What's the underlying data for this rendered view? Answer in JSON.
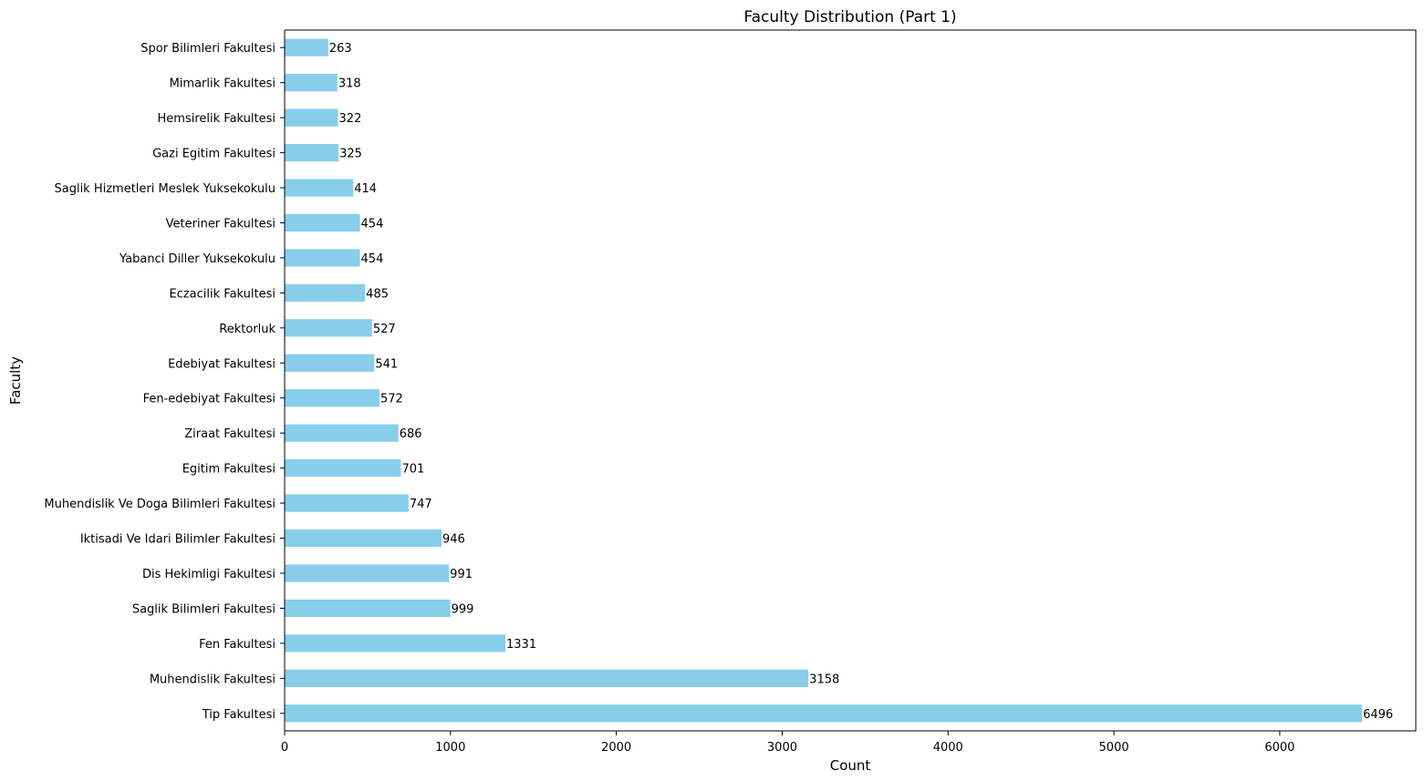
{
  "chart_data": {
    "type": "bar",
    "orientation": "horizontal",
    "title": "Faculty Distribution (Part 1)",
    "xlabel": "Count",
    "ylabel": "Faculty",
    "xlim": [
      0,
      6820
    ],
    "xticks": [
      0,
      1000,
      2000,
      3000,
      4000,
      5000,
      6000
    ],
    "grid": false,
    "bar_color": "#87ceeb",
    "categories": [
      "Tip Fakultesi",
      "Muhendislik Fakultesi",
      "Fen Fakultesi",
      "Saglik Bilimleri Fakultesi",
      "Dis Hekimligi Fakultesi",
      "Iktisadi Ve Idari Bilimler Fakultesi",
      "Muhendislik Ve Doga Bilimleri Fakultesi",
      "Egitim Fakultesi",
      "Ziraat Fakultesi",
      "Fen-edebiyat Fakultesi",
      "Edebiyat Fakultesi",
      "Rektorluk",
      "Eczacilik Fakultesi",
      "Yabanci Diller Yuksekokulu",
      "Veteriner Fakultesi",
      "Saglik Hizmetleri Meslek Yuksekokulu",
      "Gazi Egitim Fakultesi",
      "Hemsirelik Fakultesi",
      "Mimarlik Fakultesi",
      "Spor Bilimleri Fakultesi"
    ],
    "values": [
      6496,
      3158,
      1331,
      999,
      991,
      946,
      747,
      701,
      686,
      572,
      541,
      527,
      485,
      454,
      454,
      414,
      325,
      322,
      318,
      263
    ]
  }
}
